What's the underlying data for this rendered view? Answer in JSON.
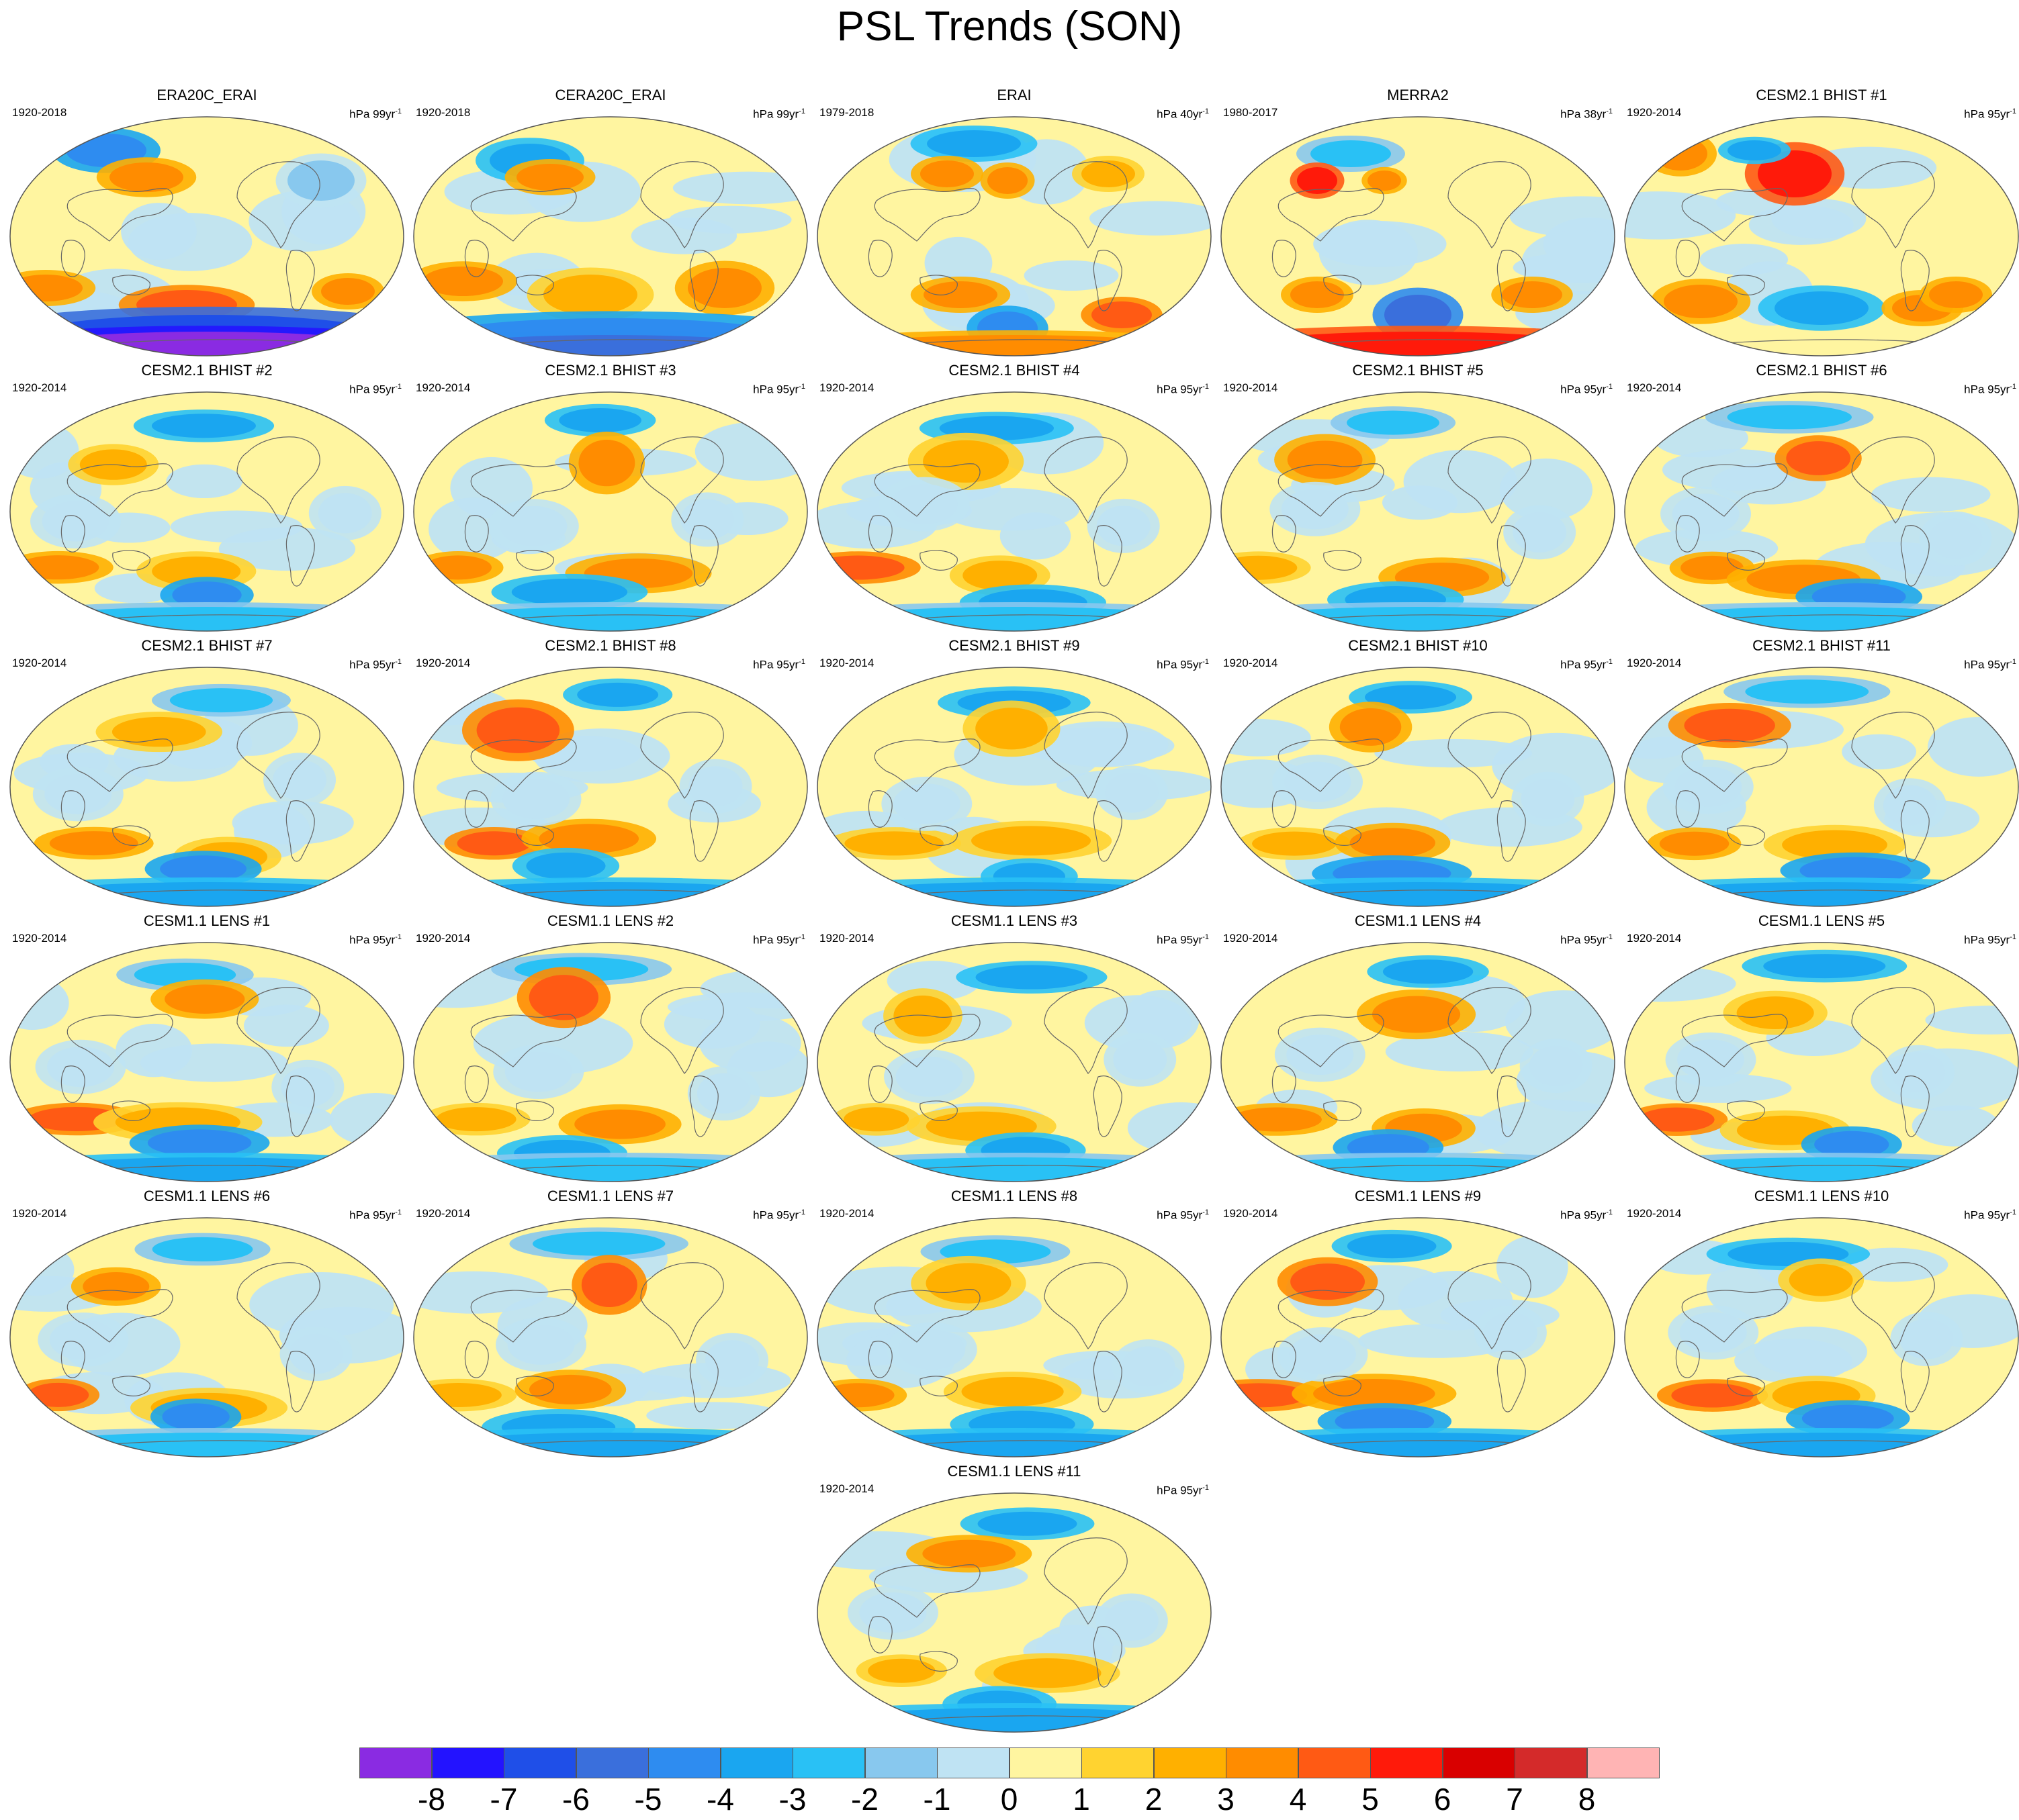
{
  "chart_data": {
    "type": "heatmap",
    "title": "PSL Trends (SON)",
    "projection": "robinson",
    "colorbar": {
      "labels": [
        "-8",
        "-7",
        "-6",
        "-5",
        "-4",
        "-3",
        "-2",
        "-1",
        "0",
        "1",
        "2",
        "3",
        "4",
        "5",
        "6",
        "7",
        "8"
      ],
      "colors": [
        "#8a2be2",
        "#2313ff",
        "#1f4fe8",
        "#3a6fdc",
        "#2e8cf0",
        "#1aa6f0",
        "#29c1f5",
        "#88c8ee",
        "#bfe3f3",
        "#fff5a0",
        "#ffd330",
        "#ffb000",
        "#ff8c00",
        "#ff5a14",
        "#ff1a0a",
        "#d90000",
        "#d42a2a",
        "#ffb4b4"
      ]
    },
    "panels": [
      {
        "title": "ERA20C_ERAI",
        "period": "1920-2018",
        "units": "hPa 99yr",
        "units_exp": "-1"
      },
      {
        "title": "CERA20C_ERAI",
        "period": "1920-2018",
        "units": "hPa 99yr",
        "units_exp": "-1"
      },
      {
        "title": "ERAI",
        "period": "1979-2018",
        "units": "hPa 40yr",
        "units_exp": "-1"
      },
      {
        "title": "MERRA2",
        "period": "1980-2017",
        "units": "hPa 38yr",
        "units_exp": "-1"
      },
      {
        "title": "CESM2.1 BHIST #1",
        "period": "1920-2014",
        "units": "hPa 95yr",
        "units_exp": "-1"
      },
      {
        "title": "CESM2.1 BHIST #2",
        "period": "1920-2014",
        "units": "hPa 95yr",
        "units_exp": "-1"
      },
      {
        "title": "CESM2.1 BHIST #3",
        "period": "1920-2014",
        "units": "hPa 95yr",
        "units_exp": "-1"
      },
      {
        "title": "CESM2.1 BHIST #4",
        "period": "1920-2014",
        "units": "hPa 95yr",
        "units_exp": "-1"
      },
      {
        "title": "CESM2.1 BHIST #5",
        "period": "1920-2014",
        "units": "hPa 95yr",
        "units_exp": "-1"
      },
      {
        "title": "CESM2.1 BHIST #6",
        "period": "1920-2014",
        "units": "hPa 95yr",
        "units_exp": "-1"
      },
      {
        "title": "CESM2.1 BHIST #7",
        "period": "1920-2014",
        "units": "hPa 95yr",
        "units_exp": "-1"
      },
      {
        "title": "CESM2.1 BHIST #8",
        "period": "1920-2014",
        "units": "hPa 95yr",
        "units_exp": "-1"
      },
      {
        "title": "CESM2.1 BHIST #9",
        "period": "1920-2014",
        "units": "hPa 95yr",
        "units_exp": "-1"
      },
      {
        "title": "CESM2.1 BHIST #10",
        "period": "1920-2014",
        "units": "hPa 95yr",
        "units_exp": "-1"
      },
      {
        "title": "CESM2.1 BHIST #11",
        "period": "1920-2014",
        "units": "hPa 95yr",
        "units_exp": "-1"
      },
      {
        "title": "CESM1.1 LENS #1",
        "period": "1920-2014",
        "units": "hPa 95yr",
        "units_exp": "-1"
      },
      {
        "title": "CESM1.1 LENS #2",
        "period": "1920-2014",
        "units": "hPa 95yr",
        "units_exp": "-1"
      },
      {
        "title": "CESM1.1 LENS #3",
        "period": "1920-2014",
        "units": "hPa 95yr",
        "units_exp": "-1"
      },
      {
        "title": "CESM1.1 LENS #4",
        "period": "1920-2014",
        "units": "hPa 95yr",
        "units_exp": "-1"
      },
      {
        "title": "CESM1.1 LENS #5",
        "period": "1920-2014",
        "units": "hPa 95yr",
        "units_exp": "-1"
      },
      {
        "title": "CESM1.1 LENS #6",
        "period": "1920-2014",
        "units": "hPa 95yr",
        "units_exp": "-1"
      },
      {
        "title": "CESM1.1 LENS #7",
        "period": "1920-2014",
        "units": "hPa 95yr",
        "units_exp": "-1"
      },
      {
        "title": "CESM1.1 LENS #8",
        "period": "1920-2014",
        "units": "hPa 95yr",
        "units_exp": "-1"
      },
      {
        "title": "CESM1.1 LENS #9",
        "period": "1920-2014",
        "units": "hPa 95yr",
        "units_exp": "-1"
      },
      {
        "title": "CESM1.1 LENS #10",
        "period": "1920-2014",
        "units": "hPa 95yr",
        "units_exp": "-1"
      },
      {
        "title": "CESM1.1 LENS #11",
        "period": "1920-2014",
        "units": "hPa 95yr",
        "units_exp": "-1"
      }
    ]
  }
}
